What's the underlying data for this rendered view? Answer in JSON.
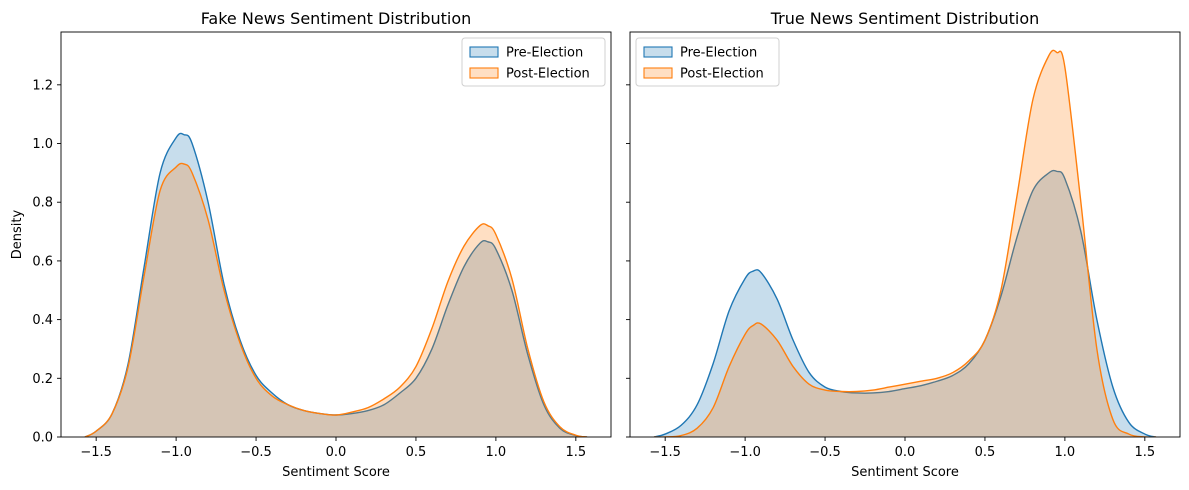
{
  "chart_data": [
    {
      "type": "area",
      "title": "Fake News Sentiment Distribution",
      "xlabel": "Sentiment Score",
      "ylabel": "Density",
      "xlim": [
        -1.72,
        1.72
      ],
      "ylim": [
        0,
        1.38
      ],
      "xticks": [
        -1.5,
        -1.0,
        -0.5,
        0.0,
        0.5,
        1.0,
        1.5
      ],
      "xtick_labels": [
        "−1.5",
        "−1.0",
        "−0.5",
        "0.0",
        "0.5",
        "1.0",
        "1.5"
      ],
      "yticks": [
        0,
        0.2,
        0.4,
        0.6,
        0.8,
        1.0,
        1.2
      ],
      "ytick_labels": [
        "0.0",
        "0.2",
        "0.4",
        "0.6",
        "0.8",
        "1.0",
        "1.2"
      ],
      "legend_position": "top-right",
      "series": [
        {
          "name": "Pre-Election",
          "color": "#1f77b4",
          "x": [
            -1.57,
            -1.5,
            -1.4,
            -1.3,
            -1.2,
            -1.1,
            -1.0,
            -0.95,
            -0.9,
            -0.8,
            -0.7,
            -0.6,
            -0.5,
            -0.4,
            -0.3,
            -0.2,
            -0.1,
            0.0,
            0.1,
            0.2,
            0.3,
            0.4,
            0.5,
            0.6,
            0.7,
            0.8,
            0.9,
            0.95,
            1.0,
            1.1,
            1.2,
            1.3,
            1.4,
            1.5,
            1.57
          ],
          "y": [
            0.0,
            0.02,
            0.08,
            0.25,
            0.58,
            0.9,
            1.02,
            1.03,
            1.0,
            0.8,
            0.52,
            0.33,
            0.21,
            0.15,
            0.11,
            0.09,
            0.08,
            0.075,
            0.08,
            0.09,
            0.11,
            0.15,
            0.2,
            0.3,
            0.45,
            0.58,
            0.66,
            0.665,
            0.64,
            0.5,
            0.28,
            0.11,
            0.03,
            0.005,
            0.0
          ]
        },
        {
          "name": "Post-Election",
          "color": "#ff7f0e",
          "x": [
            -1.57,
            -1.5,
            -1.4,
            -1.3,
            -1.2,
            -1.1,
            -1.0,
            -0.95,
            -0.9,
            -0.8,
            -0.7,
            -0.6,
            -0.5,
            -0.4,
            -0.3,
            -0.2,
            -0.1,
            0.0,
            0.1,
            0.2,
            0.3,
            0.4,
            0.5,
            0.6,
            0.7,
            0.8,
            0.9,
            0.95,
            1.0,
            1.1,
            1.2,
            1.3,
            1.4,
            1.5,
            1.57
          ],
          "y": [
            0.0,
            0.02,
            0.08,
            0.24,
            0.55,
            0.84,
            0.92,
            0.93,
            0.9,
            0.74,
            0.5,
            0.32,
            0.2,
            0.14,
            0.11,
            0.09,
            0.08,
            0.075,
            0.085,
            0.1,
            0.13,
            0.17,
            0.24,
            0.37,
            0.53,
            0.65,
            0.72,
            0.72,
            0.69,
            0.54,
            0.3,
            0.12,
            0.035,
            0.006,
            0.0
          ]
        }
      ]
    },
    {
      "type": "area",
      "title": "True News Sentiment Distribution",
      "xlabel": "Sentiment Score",
      "ylabel": "",
      "xlim": [
        -1.72,
        1.72
      ],
      "ylim": [
        0,
        1.38
      ],
      "xticks": [
        -1.5,
        -1.0,
        -0.5,
        0.0,
        0.5,
        1.0,
        1.5
      ],
      "xtick_labels": [
        "−1.5",
        "−1.0",
        "−0.5",
        "0.0",
        "0.5",
        "1.0",
        "1.5"
      ],
      "yticks": [
        0,
        0.2,
        0.4,
        0.6,
        0.8,
        1.0,
        1.2
      ],
      "ytick_labels": [],
      "legend_position": "top-left",
      "series": [
        {
          "name": "Pre-Election",
          "color": "#1f77b4",
          "x": [
            -1.57,
            -1.5,
            -1.4,
            -1.3,
            -1.2,
            -1.1,
            -1.0,
            -0.95,
            -0.9,
            -0.8,
            -0.7,
            -0.6,
            -0.5,
            -0.4,
            -0.3,
            -0.2,
            -0.1,
            0.0,
            0.1,
            0.2,
            0.3,
            0.4,
            0.5,
            0.6,
            0.7,
            0.8,
            0.9,
            0.95,
            1.0,
            1.1,
            1.2,
            1.3,
            1.4,
            1.5,
            1.57
          ],
          "y": [
            0.0,
            0.01,
            0.04,
            0.11,
            0.25,
            0.43,
            0.54,
            0.565,
            0.56,
            0.47,
            0.33,
            0.22,
            0.17,
            0.155,
            0.15,
            0.15,
            0.155,
            0.165,
            0.175,
            0.19,
            0.21,
            0.25,
            0.33,
            0.48,
            0.68,
            0.84,
            0.9,
            0.905,
            0.88,
            0.7,
            0.4,
            0.17,
            0.05,
            0.01,
            0.0
          ]
        },
        {
          "name": "Post-Election",
          "color": "#ff7f0e",
          "x": [
            -1.57,
            -1.5,
            -1.4,
            -1.3,
            -1.2,
            -1.1,
            -1.0,
            -0.95,
            -0.9,
            -0.8,
            -0.7,
            -0.6,
            -0.5,
            -0.4,
            -0.3,
            -0.2,
            -0.1,
            0.0,
            0.1,
            0.2,
            0.3,
            0.4,
            0.5,
            0.6,
            0.7,
            0.8,
            0.9,
            0.95,
            1.0,
            1.1,
            1.2,
            1.3,
            1.4,
            1.5,
            1.57
          ],
          "y": [
            0.0,
            0.0,
            0.005,
            0.03,
            0.1,
            0.24,
            0.35,
            0.38,
            0.385,
            0.33,
            0.24,
            0.18,
            0.16,
            0.155,
            0.155,
            0.16,
            0.17,
            0.18,
            0.19,
            0.2,
            0.22,
            0.26,
            0.33,
            0.5,
            0.82,
            1.15,
            1.3,
            1.31,
            1.26,
            0.8,
            0.3,
            0.06,
            0.01,
            0.0,
            0.0
          ]
        }
      ]
    }
  ]
}
